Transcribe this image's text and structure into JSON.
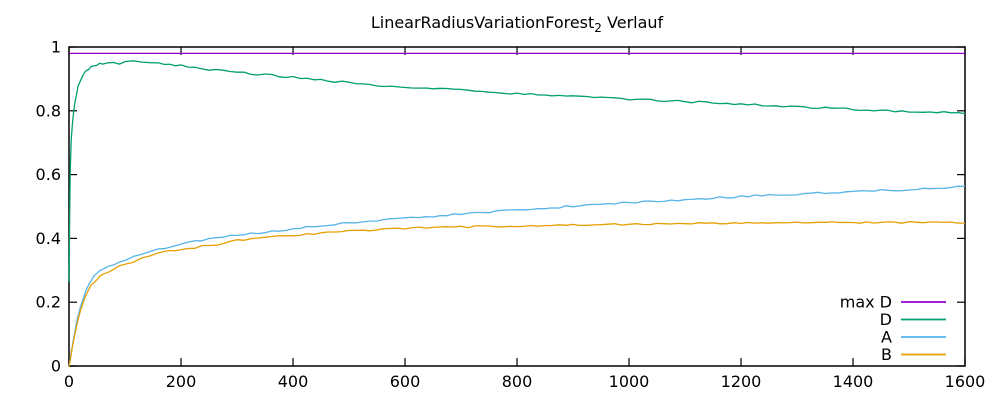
{
  "page": {
    "background": "#ffffff",
    "foreground": "#000000"
  },
  "chart_data": {
    "type": "line",
    "title": "LinearRadiusVariationForest₂ Verlauf",
    "title_main": "LinearRadiusVariationForest",
    "title_sub": "2",
    "title_tail": " Verlauf",
    "xlabel": "",
    "ylabel": "",
    "xlim": [
      0,
      1600
    ],
    "ylim": [
      0,
      1
    ],
    "xticks": [
      "0",
      "200",
      "400",
      "600",
      "800",
      "1000",
      "1200",
      "1400",
      "1600"
    ],
    "yticks": [
      "0",
      "0.2",
      "0.4",
      "0.6",
      "0.8",
      "1"
    ],
    "grid": false,
    "legend_position": "inside-bottom-right",
    "axis_color": "#000000",
    "noise": 0.003,
    "x": [
      0,
      2,
      4,
      6,
      8,
      10,
      13,
      16,
      20,
      25,
      30,
      35,
      40,
      45,
      50,
      55,
      60,
      70,
      80,
      90,
      100,
      115,
      130,
      145,
      160,
      180,
      200,
      225,
      250,
      275,
      300,
      325,
      350,
      375,
      400,
      450,
      500,
      550,
      600,
      650,
      700,
      750,
      800,
      850,
      900,
      950,
      1000,
      1050,
      1100,
      1150,
      1200,
      1250,
      1300,
      1350,
      1400,
      1450,
      1500,
      1550,
      1600
    ],
    "series": [
      {
        "name": "max D",
        "color": "#9400d3",
        "noisy": false,
        "x": [
          0,
          1600
        ],
        "y": [
          0.98,
          0.98
        ]
      },
      {
        "name": "D",
        "color": "#009e73",
        "noisy": true,
        "y": [
          0.26,
          0.6,
          0.71,
          0.76,
          0.79,
          0.82,
          0.85,
          0.875,
          0.895,
          0.912,
          0.924,
          0.932,
          0.938,
          0.942,
          0.945,
          0.947,
          0.949,
          0.952,
          0.954,
          0.948,
          0.953,
          0.955,
          0.953,
          0.951,
          0.948,
          0.944,
          0.941,
          0.936,
          0.93,
          0.926,
          0.921,
          0.917,
          0.913,
          0.909,
          0.905,
          0.896,
          0.888,
          0.88,
          0.873,
          0.869,
          0.865,
          0.859,
          0.854,
          0.849,
          0.845,
          0.841,
          0.837,
          0.833,
          0.829,
          0.825,
          0.821,
          0.817,
          0.813,
          0.809,
          0.805,
          0.801,
          0.798,
          0.795,
          0.793
        ]
      },
      {
        "name": "A",
        "color": "#56b4e9",
        "noisy": true,
        "y": [
          0.0,
          0.02,
          0.045,
          0.065,
          0.085,
          0.105,
          0.13,
          0.155,
          0.185,
          0.21,
          0.235,
          0.255,
          0.27,
          0.282,
          0.29,
          0.296,
          0.301,
          0.31,
          0.318,
          0.325,
          0.332,
          0.341,
          0.35,
          0.358,
          0.366,
          0.375,
          0.383,
          0.391,
          0.398,
          0.404,
          0.41,
          0.415,
          0.42,
          0.425,
          0.43,
          0.44,
          0.449,
          0.456,
          0.463,
          0.47,
          0.477,
          0.483,
          0.489,
          0.495,
          0.501,
          0.507,
          0.512,
          0.517,
          0.522,
          0.527,
          0.531,
          0.535,
          0.539,
          0.543,
          0.547,
          0.55,
          0.553,
          0.556,
          0.563
        ]
      },
      {
        "name": "B",
        "color": "#e69f00",
        "noisy": true,
        "y": [
          0.0,
          0.018,
          0.04,
          0.06,
          0.078,
          0.097,
          0.12,
          0.143,
          0.17,
          0.196,
          0.22,
          0.24,
          0.253,
          0.264,
          0.272,
          0.279,
          0.285,
          0.295,
          0.305,
          0.312,
          0.319,
          0.328,
          0.337,
          0.345,
          0.352,
          0.36,
          0.366,
          0.372,
          0.378,
          0.384,
          0.394,
          0.399,
          0.404,
          0.407,
          0.41,
          0.417,
          0.423,
          0.427,
          0.431,
          0.434,
          0.436,
          0.438,
          0.44,
          0.441,
          0.442,
          0.443,
          0.444,
          0.445,
          0.446,
          0.447,
          0.447,
          0.448,
          0.448,
          0.449,
          0.45,
          0.45,
          0.45,
          0.449,
          0.45
        ]
      }
    ]
  }
}
